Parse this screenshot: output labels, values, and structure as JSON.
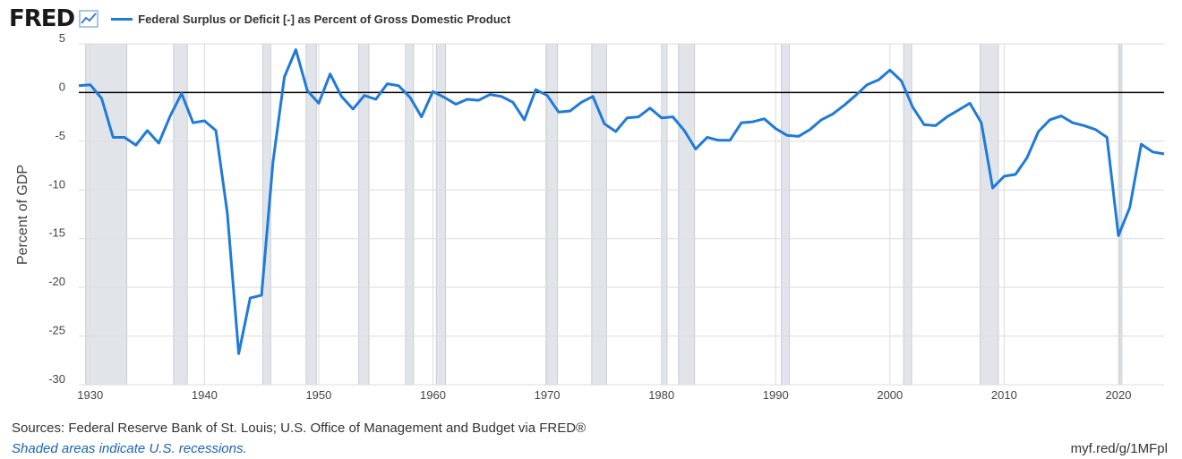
{
  "brand": {
    "logo_text": "FRED",
    "logo_icon": "chart-line-icon"
  },
  "chart_data": {
    "type": "line",
    "title": "",
    "xlabel": "",
    "ylabel": "Percent of GDP",
    "xlim": [
      1929,
      2024
    ],
    "ylim": [
      -30,
      5
    ],
    "y_ticks": [
      5,
      0,
      -5,
      -10,
      -15,
      -20,
      -25,
      -30
    ],
    "x_ticks": [
      1930,
      1940,
      1950,
      1960,
      1970,
      1980,
      1990,
      2000,
      2010,
      2020
    ],
    "grid": true,
    "legend_position": "top-left",
    "reference_line_y": 0,
    "recession_color": "#e1e5ea",
    "recessions": [
      [
        1929.6,
        1933.2
      ],
      [
        1937.3,
        1938.5
      ],
      [
        1945.1,
        1945.8
      ],
      [
        1948.9,
        1949.8
      ],
      [
        1953.5,
        1954.4
      ],
      [
        1957.6,
        1958.3
      ],
      [
        1960.3,
        1961.1
      ],
      [
        1969.9,
        1970.9
      ],
      [
        1973.9,
        1975.2
      ],
      [
        1980.0,
        1980.5
      ],
      [
        1981.5,
        1982.9
      ],
      [
        1990.5,
        1991.2
      ],
      [
        2001.2,
        2001.9
      ],
      [
        2007.9,
        2009.5
      ],
      [
        2020.1,
        2020.3
      ]
    ],
    "series": [
      {
        "name": "Federal Surplus or Deficit [-] as Percent of Gross Domestic Product",
        "color": "#1f7ad8",
        "x": [
          1929,
          1930,
          1931,
          1932,
          1933,
          1934,
          1935,
          1936,
          1937,
          1938,
          1939,
          1940,
          1941,
          1942,
          1943,
          1944,
          1945,
          1946,
          1947,
          1948,
          1949,
          1950,
          1951,
          1952,
          1953,
          1954,
          1955,
          1956,
          1957,
          1958,
          1959,
          1960,
          1961,
          1962,
          1963,
          1964,
          1965,
          1966,
          1967,
          1968,
          1969,
          1970,
          1971,
          1972,
          1973,
          1974,
          1975,
          1976,
          1977,
          1978,
          1979,
          1980,
          1981,
          1982,
          1983,
          1984,
          1985,
          1986,
          1987,
          1988,
          1989,
          1990,
          1991,
          1992,
          1993,
          1994,
          1995,
          1996,
          1997,
          1998,
          1999,
          2000,
          2001,
          2002,
          2003,
          2004,
          2005,
          2006,
          2007,
          2008,
          2009,
          2010,
          2011,
          2012,
          2013,
          2014,
          2015,
          2016,
          2017,
          2018,
          2019,
          2020,
          2021,
          2022,
          2023,
          2024
        ],
        "values": [
          0.7,
          0.8,
          -0.6,
          -4.6,
          -4.6,
          -5.4,
          -3.9,
          -5.2,
          -2.4,
          -0.1,
          -3.1,
          -2.9,
          -3.9,
          -12.4,
          -26.8,
          -21.1,
          -20.8,
          -7.1,
          1.6,
          4.4,
          0.2,
          -1.1,
          1.9,
          -0.4,
          -1.7,
          -0.3,
          -0.7,
          0.9,
          0.7,
          -0.5,
          -2.5,
          0.1,
          -0.5,
          -1.2,
          -0.7,
          -0.8,
          -0.2,
          -0.4,
          -1.0,
          -2.8,
          0.3,
          -0.3,
          -2.0,
          -1.9,
          -1.0,
          -0.4,
          -3.2,
          -4.0,
          -2.6,
          -2.5,
          -1.6,
          -2.6,
          -2.5,
          -3.9,
          -5.8,
          -4.6,
          -4.9,
          -4.9,
          -3.1,
          -3.0,
          -2.7,
          -3.7,
          -4.4,
          -4.5,
          -3.8,
          -2.8,
          -2.2,
          -1.3,
          -0.3,
          0.8,
          1.3,
          2.3,
          1.2,
          -1.5,
          -3.3,
          -3.4,
          -2.5,
          -1.8,
          -1.1,
          -3.1,
          -9.8,
          -8.6,
          -8.4,
          -6.7,
          -4.0,
          -2.8,
          -2.4,
          -3.1,
          -3.4,
          -3.8,
          -4.6,
          -14.7,
          -11.8,
          -5.3,
          -6.1,
          -6.3
        ]
      }
    ]
  },
  "footer": {
    "sources": "Sources: Federal Reserve Bank of St. Louis; U.S. Office of Management and Budget via FRED®",
    "recession_note": "Shaded areas indicate U.S. recessions.",
    "short_url": "myf.red/g/1MFpl"
  }
}
